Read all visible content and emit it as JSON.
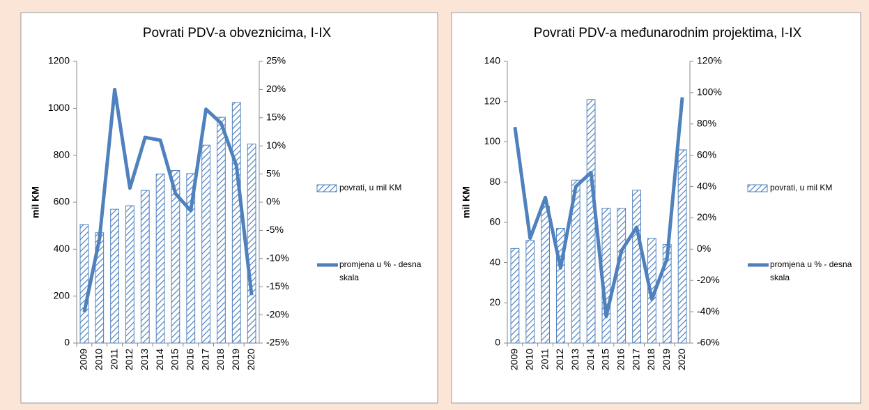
{
  "chart_data": [
    {
      "type": "bar_line",
      "title": "Povrati PDV-a obveznicima, I-IX",
      "ylabel": "mil KM",
      "legend": "right",
      "categories": [
        "2009",
        "2010",
        "2011",
        "2012",
        "2013",
        "2014",
        "2015",
        "2016",
        "2017",
        "2018",
        "2019",
        "2020"
      ],
      "series": [
        {
          "name": "povrati, u mil KM",
          "type": "bar",
          "pattern": "hatch",
          "color": "#4f81bd",
          "values": [
            505,
            470,
            570,
            585,
            650,
            720,
            735,
            722,
            843,
            962,
            1025,
            848
          ]
        },
        {
          "name": "promjena u % - desna skala",
          "type": "line",
          "axis": "y2",
          "color": "#4f81bd",
          "values": [
            -19.5,
            -6.5,
            20,
            2.5,
            11.5,
            11,
            1.5,
            -1.5,
            16.5,
            14,
            6.5,
            -16.5
          ]
        }
      ],
      "ylim": [
        0,
        1200
      ],
      "yticks": [
        0,
        200,
        400,
        600,
        800,
        1000,
        1200
      ],
      "y2lim": [
        -25,
        25
      ],
      "y2ticks": [
        {
          "value": -25,
          "label": "-25%"
        },
        {
          "value": -20,
          "label": "-20%"
        },
        {
          "value": -15,
          "label": "-15%"
        },
        {
          "value": -10,
          "label": "-10%"
        },
        {
          "value": -5,
          "label": "-5%"
        },
        {
          "value": 0,
          "label": "0%"
        },
        {
          "value": 5,
          "label": "5%"
        },
        {
          "value": 10,
          "label": "10%"
        },
        {
          "value": 15,
          "label": "15%"
        },
        {
          "value": 20,
          "label": "20%"
        },
        {
          "value": 25,
          "label": "25%"
        }
      ]
    },
    {
      "type": "bar_line",
      "title": "Povrati PDV-a međunarodnim projektima, I-IX",
      "ylabel": "mil KM",
      "legend": "right",
      "categories": [
        "2009",
        "2010",
        "2011",
        "2012",
        "2013",
        "2014",
        "2015",
        "2016",
        "2017",
        "2018",
        "2019",
        "2020"
      ],
      "series": [
        {
          "name": "povrati, u mil KM",
          "type": "bar",
          "pattern": "hatch",
          "color": "#4f81bd",
          "values": [
            47,
            51,
            68,
            57,
            81,
            121,
            67,
            67,
            76,
            52,
            49,
            96
          ]
        },
        {
          "name": "promjena u % - desna skala",
          "type": "line",
          "axis": "y2",
          "color": "#4f81bd",
          "values": [
            78,
            7,
            33,
            -12,
            40,
            49,
            -43,
            -1,
            14,
            -32,
            -6,
            97
          ]
        }
      ],
      "ylim": [
        0,
        140
      ],
      "yticks": [
        0,
        20,
        40,
        60,
        80,
        100,
        120,
        140
      ],
      "y2lim": [
        -60,
        120
      ],
      "y2ticks": [
        {
          "value": -60,
          "label": "-60%"
        },
        {
          "value": -40,
          "label": "-40%"
        },
        {
          "value": -20,
          "label": "-20%"
        },
        {
          "value": 0,
          "label": "0%"
        },
        {
          "value": 20,
          "label": "20%"
        },
        {
          "value": 40,
          "label": "40%"
        },
        {
          "value": 60,
          "label": "60%"
        },
        {
          "value": 80,
          "label": "80%"
        },
        {
          "value": 100,
          "label": "100%"
        },
        {
          "value": 120,
          "label": "120%"
        }
      ]
    }
  ]
}
